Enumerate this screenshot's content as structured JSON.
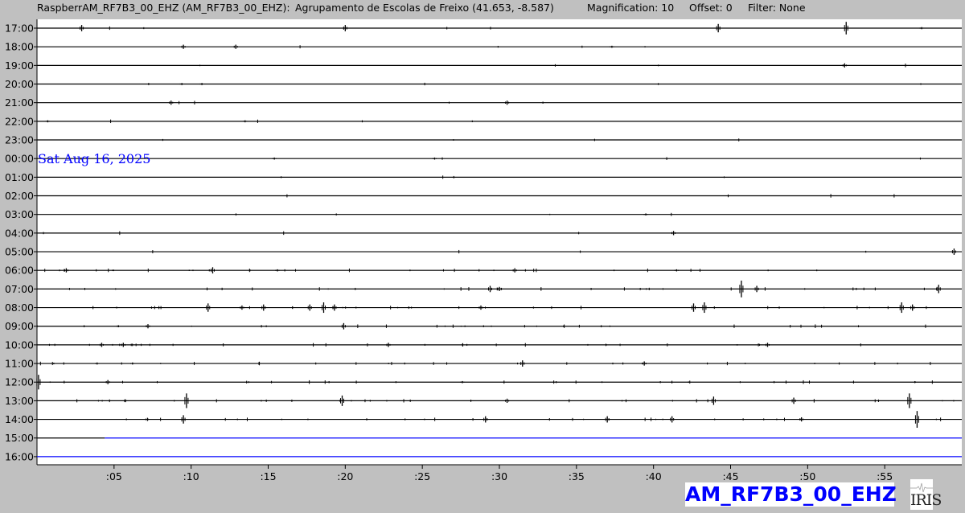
{
  "header": {
    "station": "RaspberrAM_RF7B3_00_EHZ (AM_RF7B3_00_EHZ):",
    "location": "Agrupamento de Escolas de Freixo (41.653, -8.587)",
    "magnification": "Magnification: 10",
    "offset": "Offset: 0",
    "filter": "Filter: None"
  },
  "badge": "AM_RF7B3_00_EHZ",
  "logo": "IRIS",
  "chart_data": {
    "type": "line",
    "title": "",
    "date_label": "Sat Aug 16, 2025",
    "date_label_row": "00:00",
    "x_ticks": [
      ":05",
      ":10",
      ":15",
      ":20",
      ":25",
      ":30",
      ":35",
      ":40",
      ":45",
      ":50",
      ":55"
    ],
    "xlim_minutes": [
      0,
      60
    ],
    "colors": {
      "past": "#000000",
      "pending": "#0000ff"
    },
    "current_hour": "15:00",
    "current_minute": 4.4,
    "rows": [
      {
        "label": "17:00",
        "events": [
          [
            2.9,
            3
          ],
          [
            20.0,
            3
          ],
          [
            44.2,
            4
          ],
          [
            52.5,
            6
          ],
          [
            57.4,
            1
          ]
        ]
      },
      {
        "label": "18:00",
        "events": [
          [
            9.5,
            2
          ],
          [
            12.9,
            2
          ],
          [
            37.3,
            1
          ]
        ]
      },
      {
        "label": "19:00",
        "events": [
          [
            52.4,
            2
          ]
        ]
      },
      {
        "label": "20:00",
        "events": [
          [
            9.4,
            1
          ],
          [
            10.7,
            1
          ]
        ]
      },
      {
        "label": "21:00",
        "events": [
          [
            8.7,
            2
          ],
          [
            30.5,
            2
          ]
        ]
      },
      {
        "label": "22:00",
        "events": [
          [
            0.7,
            1
          ],
          [
            13.5,
            1
          ]
        ]
      },
      {
        "label": "23:00",
        "events": []
      },
      {
        "label": "00:00",
        "events": [
          [
            15.4,
            1
          ],
          [
            25.8,
            1
          ]
        ]
      },
      {
        "label": "01:00",
        "events": []
      },
      {
        "label": "02:00",
        "events": []
      },
      {
        "label": "03:00",
        "events": [
          [
            39.5,
            1
          ]
        ]
      },
      {
        "label": "04:00",
        "events": [
          [
            41.3,
            2
          ]
        ]
      },
      {
        "label": "05:00",
        "events": [
          [
            59.5,
            3
          ]
        ]
      },
      {
        "label": "06:00",
        "events": [
          [
            1.9,
            2
          ],
          [
            11.4,
            3
          ],
          [
            15.6,
            1
          ],
          [
            31.0,
            2
          ],
          [
            41.5,
            1
          ]
        ]
      },
      {
        "label": "07:00",
        "events": [
          [
            29.4,
            3
          ],
          [
            30.0,
            2
          ],
          [
            45.7,
            8
          ],
          [
            46.7,
            3
          ],
          [
            58.5,
            4
          ]
        ]
      },
      {
        "label": "08:00",
        "events": [
          [
            11.1,
            4
          ],
          [
            13.3,
            2
          ],
          [
            14.7,
            3
          ],
          [
            17.7,
            3
          ],
          [
            18.6,
            5
          ],
          [
            19.3,
            3
          ],
          [
            28.8,
            2
          ],
          [
            42.6,
            4
          ],
          [
            43.3,
            5
          ],
          [
            56.1,
            5
          ],
          [
            56.8,
            3
          ]
        ]
      },
      {
        "label": "09:00",
        "events": [
          [
            7.2,
            2
          ],
          [
            19.9,
            3
          ]
        ]
      },
      {
        "label": "10:00",
        "events": [
          [
            4.2,
            2
          ],
          [
            5.6,
            2
          ],
          [
            22.8,
            2
          ],
          [
            47.4,
            2
          ]
        ]
      },
      {
        "label": "11:00",
        "events": [
          [
            31.5,
            3
          ],
          [
            39.4,
            2
          ],
          [
            3.9,
            1
          ],
          [
            6.2,
            1
          ]
        ]
      },
      {
        "label": "12:00",
        "events": [
          [
            0.1,
            7
          ],
          [
            4.6,
            2
          ],
          [
            27.6,
            1
          ]
        ]
      },
      {
        "label": "13:00",
        "events": [
          [
            9.7,
            7
          ],
          [
            19.8,
            5
          ],
          [
            30.5,
            2
          ],
          [
            43.9,
            4
          ],
          [
            49.1,
            3
          ],
          [
            56.6,
            7
          ]
        ]
      },
      {
        "label": "14:00",
        "events": [
          [
            9.5,
            4
          ],
          [
            29.1,
            3
          ],
          [
            37.0,
            3
          ],
          [
            41.2,
            3
          ],
          [
            57.1,
            8
          ],
          [
            49.6,
            2
          ]
        ]
      },
      {
        "label": "15:00",
        "events": []
      },
      {
        "label": "16:00",
        "events": []
      }
    ]
  }
}
